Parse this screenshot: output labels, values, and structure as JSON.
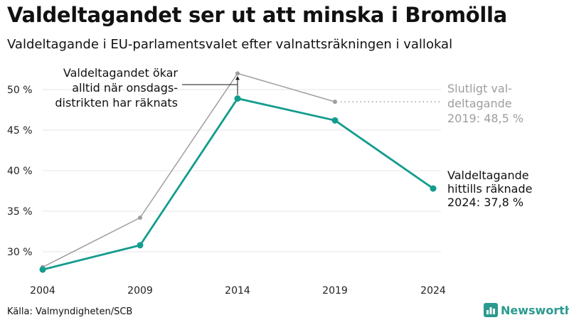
{
  "colors": {
    "accent": "#139c8f",
    "final_2019": "#9e9e9e",
    "grid": "#e6e6e6",
    "brand": "#2a9a8f"
  },
  "header": {
    "title": "Valdeltagandet ser ut att minska i Bromölla",
    "subtitle": "Valdeltagande i EU-parlamentsvalet efter valnattsräkningen i vallokal"
  },
  "footer": {
    "source": "Källa: Valmyndigheten/SCB",
    "brand": "Newsworthy",
    "brand_icon": "bar-chart-logo-icon"
  },
  "chart_data": {
    "type": "line",
    "categories": [
      "2004",
      "2009",
      "2014",
      "2019",
      "2024"
    ],
    "y_ticks": [
      30,
      35,
      40,
      45,
      50
    ],
    "y_tick_labels": [
      "30 %",
      "35 %",
      "40 %",
      "45 %",
      "50 %"
    ],
    "ylim": [
      26.5,
      53
    ],
    "grid": true,
    "series": [
      {
        "key": "final",
        "values": [
          28.1,
          34.2,
          52.0,
          48.5,
          null
        ]
      },
      {
        "key": "preliminary",
        "values": [
          27.8,
          30.8,
          48.9,
          46.2,
          37.8
        ]
      }
    ],
    "annotations": {
      "wednesday": [
        "Valdeltagandet ökar",
        "alltid när onsdags-",
        "distrikten har räknats"
      ],
      "final_2019": [
        "Slutligt val-",
        "deltagande",
        "2019: 48,5 %"
      ],
      "current_2024": [
        "Valdeltagande",
        "hittills räknade",
        "2024: 37,8 %"
      ]
    }
  }
}
